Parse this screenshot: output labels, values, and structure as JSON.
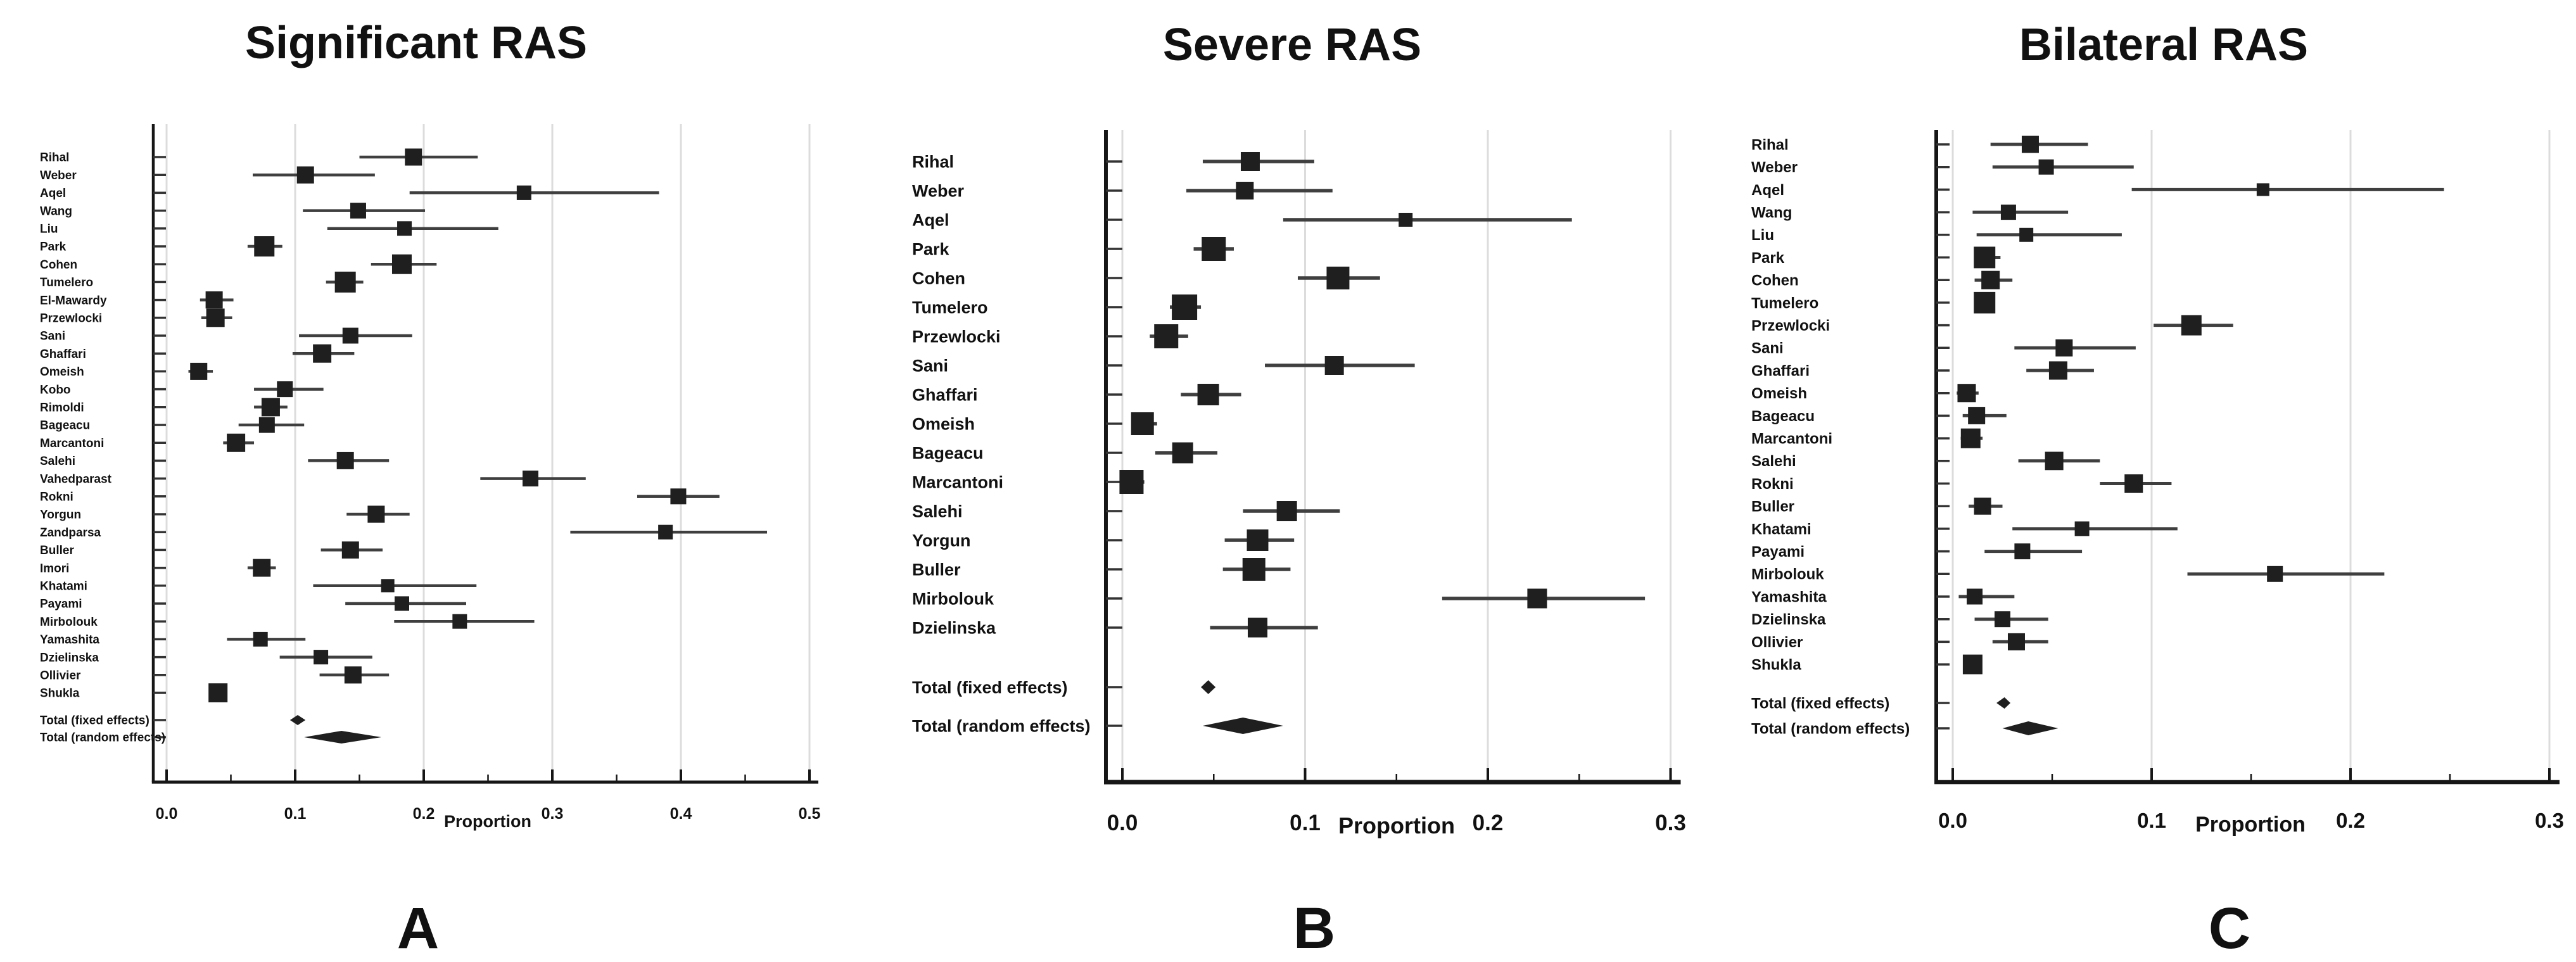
{
  "figure_caption_letters": [
    "A",
    "B",
    "C"
  ],
  "chart_data": [
    {
      "type": "scatter",
      "variant": "forest-plot",
      "title": "Significant RAS",
      "panel_letter": "A",
      "xlabel": "Proportion",
      "xlim": [
        0,
        0.5
      ],
      "x_major_ticks": [
        0.0,
        0.1,
        0.2,
        0.3,
        0.4,
        0.5
      ],
      "x_tick_labels": [
        "0.0",
        "0.1",
        "0.2",
        "0.3",
        "0.4",
        "0.5"
      ],
      "x_minor_step": 0.05,
      "grid": true,
      "studies": [
        {
          "label": "Rihal",
          "p": 0.192,
          "lo": 0.15,
          "hi": 0.242,
          "w": 27
        },
        {
          "label": "Weber",
          "p": 0.108,
          "lo": 0.067,
          "hi": 0.162,
          "w": 27
        },
        {
          "label": "Aqel",
          "p": 0.278,
          "lo": 0.189,
          "hi": 0.383,
          "w": 23
        },
        {
          "label": "Wang",
          "p": 0.149,
          "lo": 0.106,
          "hi": 0.201,
          "w": 25
        },
        {
          "label": "Liu",
          "p": 0.185,
          "lo": 0.125,
          "hi": 0.258,
          "w": 23
        },
        {
          "label": "Park",
          "p": 0.076,
          "lo": 0.063,
          "hi": 0.09,
          "w": 32
        },
        {
          "label": "Cohen",
          "p": 0.183,
          "lo": 0.159,
          "hi": 0.21,
          "w": 31
        },
        {
          "label": "Tumelero",
          "p": 0.139,
          "lo": 0.124,
          "hi": 0.153,
          "w": 33
        },
        {
          "label": "El-Mawardy",
          "p": 0.037,
          "lo": 0.026,
          "hi": 0.052,
          "w": 27
        },
        {
          "label": "Przewlocki",
          "p": 0.038,
          "lo": 0.027,
          "hi": 0.051,
          "w": 29
        },
        {
          "label": "Sani",
          "p": 0.143,
          "lo": 0.103,
          "hi": 0.191,
          "w": 25
        },
        {
          "label": "Ghaffari",
          "p": 0.121,
          "lo": 0.098,
          "hi": 0.146,
          "w": 29
        },
        {
          "label": "Omeish",
          "p": 0.025,
          "lo": 0.017,
          "hi": 0.036,
          "w": 27
        },
        {
          "label": "Kobo",
          "p": 0.092,
          "lo": 0.068,
          "hi": 0.122,
          "w": 25
        },
        {
          "label": "Rimoldi",
          "p": 0.081,
          "lo": 0.068,
          "hi": 0.094,
          "w": 29
        },
        {
          "label": "Bageacu",
          "p": 0.078,
          "lo": 0.056,
          "hi": 0.107,
          "w": 25
        },
        {
          "label": "Marcantoni",
          "p": 0.054,
          "lo": 0.044,
          "hi": 0.068,
          "w": 29
        },
        {
          "label": "Salehi",
          "p": 0.139,
          "lo": 0.11,
          "hi": 0.173,
          "w": 27
        },
        {
          "label": "Vahedparast",
          "p": 0.283,
          "lo": 0.244,
          "hi": 0.326,
          "w": 25
        },
        {
          "label": "Rokni",
          "p": 0.398,
          "lo": 0.366,
          "hi": 0.43,
          "w": 25
        },
        {
          "label": "Yorgun",
          "p": 0.163,
          "lo": 0.14,
          "hi": 0.189,
          "w": 27
        },
        {
          "label": "Zandparsa",
          "p": 0.388,
          "lo": 0.314,
          "hi": 0.467,
          "w": 23
        },
        {
          "label": "Buller",
          "p": 0.143,
          "lo": 0.12,
          "hi": 0.168,
          "w": 27
        },
        {
          "label": "Imori",
          "p": 0.074,
          "lo": 0.063,
          "hi": 0.085,
          "w": 28
        },
        {
          "label": "Khatami",
          "p": 0.172,
          "lo": 0.114,
          "hi": 0.241,
          "w": 21
        },
        {
          "label": "Payami",
          "p": 0.183,
          "lo": 0.139,
          "hi": 0.233,
          "w": 23
        },
        {
          "label": "Mirbolouk",
          "p": 0.228,
          "lo": 0.177,
          "hi": 0.286,
          "w": 23
        },
        {
          "label": "Yamashita",
          "p": 0.073,
          "lo": 0.047,
          "hi": 0.108,
          "w": 23
        },
        {
          "label": "Dzielinska",
          "p": 0.12,
          "lo": 0.088,
          "hi": 0.16,
          "w": 23
        },
        {
          "label": "Ollivier",
          "p": 0.145,
          "lo": 0.119,
          "hi": 0.173,
          "w": 27
        },
        {
          "label": "Shukla",
          "p": 0.04,
          "lo": 0.035,
          "hi": 0.046,
          "w": 30
        }
      ],
      "totals": [
        {
          "label": "Total (fixed effects)",
          "p": 0.102,
          "lo": 0.096,
          "hi": 0.108
        },
        {
          "label": "Total (random effects)",
          "p": 0.136,
          "lo": 0.107,
          "hi": 0.167
        }
      ]
    },
    {
      "type": "scatter",
      "variant": "forest-plot",
      "title": "Severe RAS",
      "panel_letter": "B",
      "xlabel": "Proportion",
      "xlim": [
        0,
        0.3
      ],
      "x_major_ticks": [
        0.0,
        0.1,
        0.2,
        0.3
      ],
      "x_tick_labels": [
        "0.0",
        "0.1",
        "0.2",
        "0.3"
      ],
      "x_minor_step": 0.05,
      "grid": true,
      "studies": [
        {
          "label": "Rihal",
          "p": 0.07,
          "lo": 0.044,
          "hi": 0.105,
          "w": 30
        },
        {
          "label": "Weber",
          "p": 0.067,
          "lo": 0.035,
          "hi": 0.115,
          "w": 28
        },
        {
          "label": "Aqel",
          "p": 0.155,
          "lo": 0.088,
          "hi": 0.246,
          "w": 22
        },
        {
          "label": "Park",
          "p": 0.05,
          "lo": 0.039,
          "hi": 0.061,
          "w": 38
        },
        {
          "label": "Cohen",
          "p": 0.118,
          "lo": 0.096,
          "hi": 0.141,
          "w": 36
        },
        {
          "label": "Tumelero",
          "p": 0.034,
          "lo": 0.026,
          "hi": 0.043,
          "w": 40
        },
        {
          "label": "Przewlocki",
          "p": 0.024,
          "lo": 0.015,
          "hi": 0.036,
          "w": 38
        },
        {
          "label": "Sani",
          "p": 0.116,
          "lo": 0.078,
          "hi": 0.16,
          "w": 30
        },
        {
          "label": "Ghaffari",
          "p": 0.047,
          "lo": 0.032,
          "hi": 0.065,
          "w": 34
        },
        {
          "label": "Omeish",
          "p": 0.011,
          "lo": 0.005,
          "hi": 0.019,
          "w": 36
        },
        {
          "label": "Bageacu",
          "p": 0.033,
          "lo": 0.018,
          "hi": 0.052,
          "w": 33
        },
        {
          "label": "Marcantoni",
          "p": 0.005,
          "lo": 0.001,
          "hi": 0.012,
          "w": 38
        },
        {
          "label": "Salehi",
          "p": 0.09,
          "lo": 0.066,
          "hi": 0.119,
          "w": 32
        },
        {
          "label": "Yorgun",
          "p": 0.074,
          "lo": 0.056,
          "hi": 0.094,
          "w": 34
        },
        {
          "label": "Buller",
          "p": 0.072,
          "lo": 0.055,
          "hi": 0.092,
          "w": 36
        },
        {
          "label": "Mirbolouk",
          "p": 0.227,
          "lo": 0.175,
          "hi": 0.286,
          "w": 31
        },
        {
          "label": "Dzielinska",
          "p": 0.074,
          "lo": 0.048,
          "hi": 0.107,
          "w": 31
        }
      ],
      "totals": [
        {
          "label": "Total (fixed effects)",
          "p": 0.047,
          "lo": 0.043,
          "hi": 0.051
        },
        {
          "label": "Total (random effects)",
          "p": 0.066,
          "lo": 0.044,
          "hi": 0.088
        }
      ]
    },
    {
      "type": "scatter",
      "variant": "forest-plot",
      "title": "Bilateral RAS",
      "panel_letter": "C",
      "xlabel": "Proportion",
      "xlim": [
        0,
        0.3
      ],
      "x_major_ticks": [
        0.0,
        0.1,
        0.2,
        0.3
      ],
      "x_tick_labels": [
        "0.0",
        "0.1",
        "0.2",
        "0.3"
      ],
      "x_minor_step": 0.05,
      "grid": true,
      "studies": [
        {
          "label": "Rihal",
          "p": 0.039,
          "lo": 0.019,
          "hi": 0.068,
          "w": 27
        },
        {
          "label": "Weber",
          "p": 0.047,
          "lo": 0.02,
          "hi": 0.091,
          "w": 24
        },
        {
          "label": "Aqel",
          "p": 0.156,
          "lo": 0.09,
          "hi": 0.247,
          "w": 20
        },
        {
          "label": "Wang",
          "p": 0.028,
          "lo": 0.01,
          "hi": 0.058,
          "w": 24
        },
        {
          "label": "Liu",
          "p": 0.037,
          "lo": 0.012,
          "hi": 0.085,
          "w": 22
        },
        {
          "label": "Park",
          "p": 0.016,
          "lo": 0.011,
          "hi": 0.024,
          "w": 34
        },
        {
          "label": "Cohen",
          "p": 0.019,
          "lo": 0.011,
          "hi": 0.03,
          "w": 29
        },
        {
          "label": "Tumelero",
          "p": 0.016,
          "lo": 0.011,
          "hi": 0.021,
          "w": 34
        },
        {
          "label": "Przewlocki",
          "p": 0.12,
          "lo": 0.101,
          "hi": 0.141,
          "w": 32
        },
        {
          "label": "Sani",
          "p": 0.056,
          "lo": 0.031,
          "hi": 0.092,
          "w": 27
        },
        {
          "label": "Ghaffari",
          "p": 0.053,
          "lo": 0.037,
          "hi": 0.071,
          "w": 29
        },
        {
          "label": "Omeish",
          "p": 0.007,
          "lo": 0.002,
          "hi": 0.013,
          "w": 29
        },
        {
          "label": "Bageacu",
          "p": 0.012,
          "lo": 0.005,
          "hi": 0.027,
          "w": 27
        },
        {
          "label": "Marcantoni",
          "p": 0.009,
          "lo": 0.004,
          "hi": 0.015,
          "w": 31
        },
        {
          "label": "Salehi",
          "p": 0.051,
          "lo": 0.033,
          "hi": 0.074,
          "w": 29
        },
        {
          "label": "Rokni",
          "p": 0.091,
          "lo": 0.074,
          "hi": 0.11,
          "w": 29
        },
        {
          "label": "Buller",
          "p": 0.015,
          "lo": 0.008,
          "hi": 0.025,
          "w": 27
        },
        {
          "label": "Khatami",
          "p": 0.065,
          "lo": 0.03,
          "hi": 0.113,
          "w": 23
        },
        {
          "label": "Payami",
          "p": 0.035,
          "lo": 0.016,
          "hi": 0.065,
          "w": 25
        },
        {
          "label": "Mirbolouk",
          "p": 0.162,
          "lo": 0.118,
          "hi": 0.217,
          "w": 25
        },
        {
          "label": "Yamashita",
          "p": 0.011,
          "lo": 0.003,
          "hi": 0.031,
          "w": 25
        },
        {
          "label": "Dzielinska",
          "p": 0.025,
          "lo": 0.011,
          "hi": 0.048,
          "w": 25
        },
        {
          "label": "Ollivier",
          "p": 0.032,
          "lo": 0.02,
          "hi": 0.048,
          "w": 27
        },
        {
          "label": "Shukla",
          "p": 0.01,
          "lo": 0.006,
          "hi": 0.014,
          "w": 31
        }
      ],
      "totals": [
        {
          "label": "Total (fixed effects)",
          "p": 0.026,
          "lo": 0.022,
          "hi": 0.029
        },
        {
          "label": "Total (random effects)",
          "p": 0.038,
          "lo": 0.025,
          "hi": 0.053
        }
      ]
    }
  ]
}
